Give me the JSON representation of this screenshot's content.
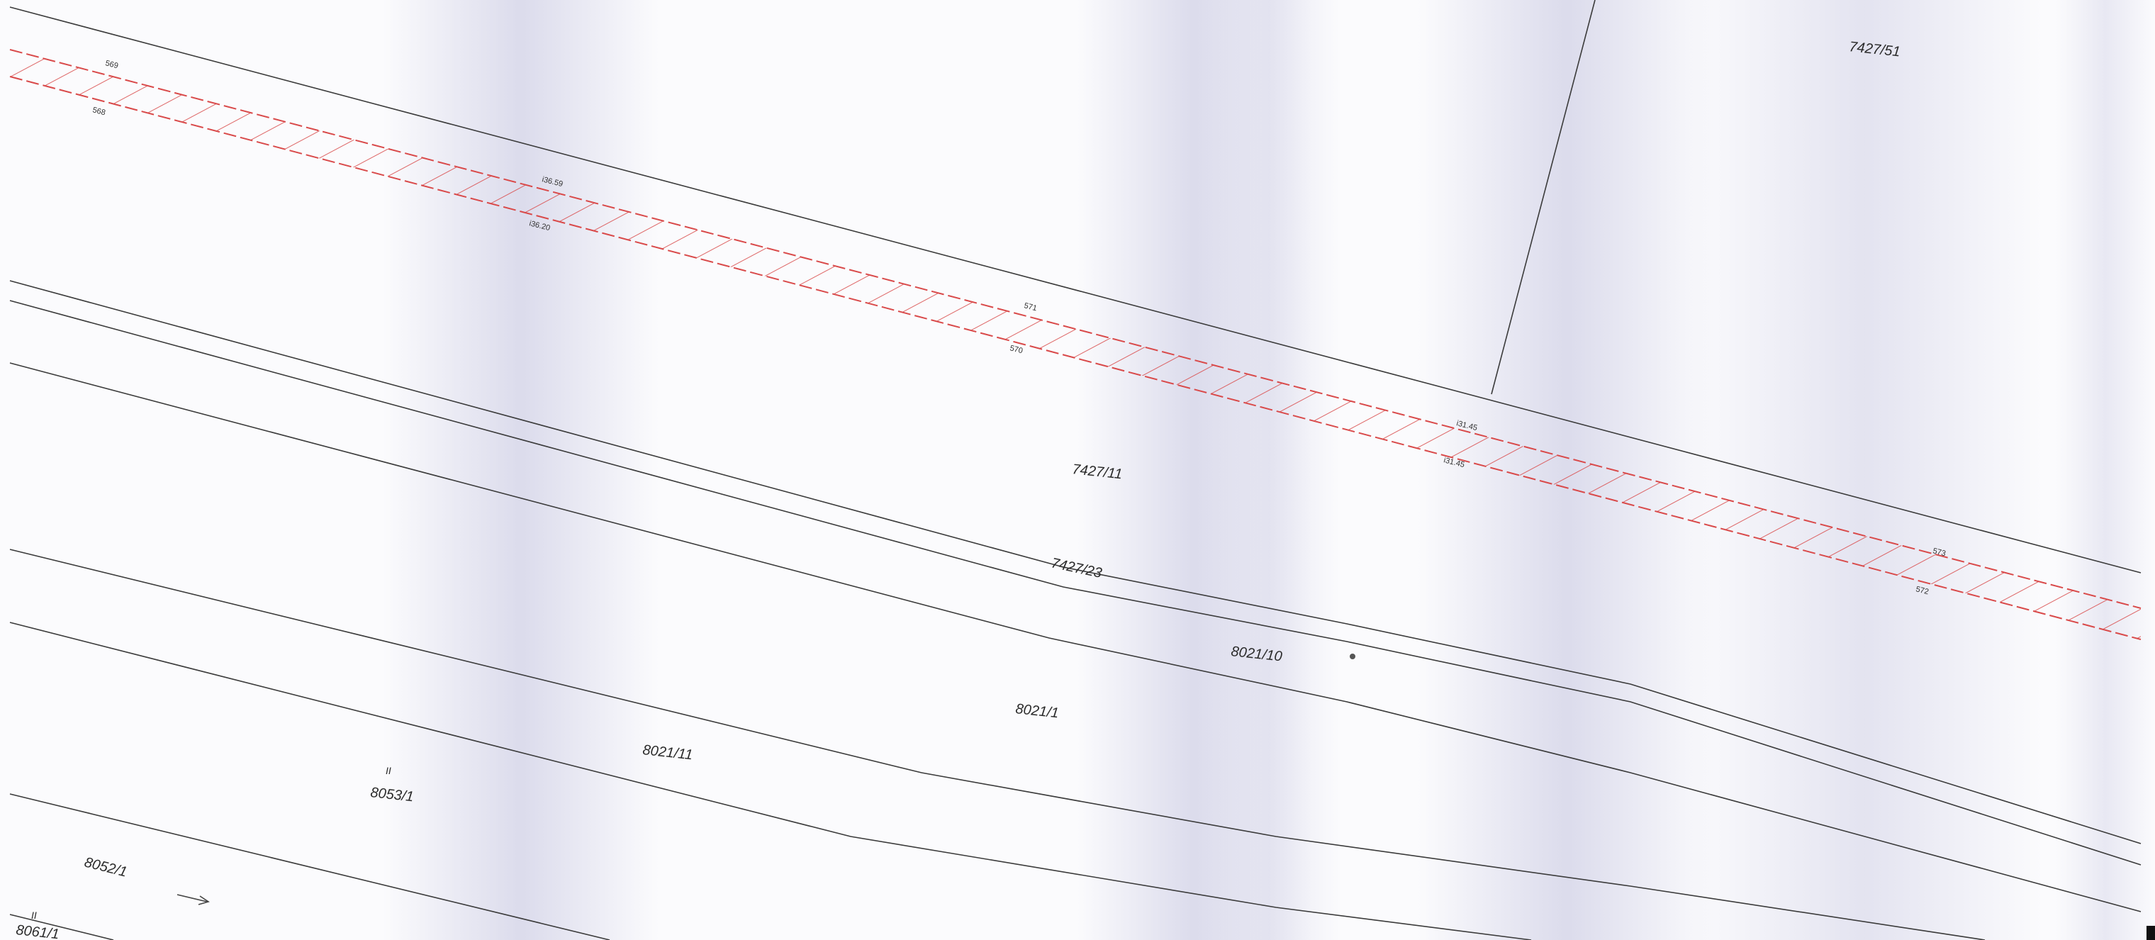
{
  "parcels": {
    "p7427_51": "7427/51",
    "p7427_11": "7427/11",
    "p7427_23": "7427/23",
    "p8021_10": "8021/10",
    "p8021_1": "8021/1",
    "p8021_11": "8021/11",
    "p8053_1": "8053/1",
    "p8052_1": "8052/1",
    "p8061_1": "8061/1"
  },
  "survey_points": {
    "pt_569": "569",
    "pt_568": "568",
    "pt_i3653": "i36.59",
    "pt_i3620": "i36.20",
    "pt_571": "571",
    "pt_570": "570",
    "pt_i3145a": "i31.45",
    "pt_i3145b": "i31.45",
    "pt_573": "573",
    "pt_572": "572"
  },
  "symbols": {
    "tick_mark": "II"
  },
  "colors": {
    "boundary": "#3b3b3b",
    "easement_hatch": "#d94a4a",
    "paper": "#fbfbfd",
    "scan_shadow": "#d8d8ea"
  }
}
